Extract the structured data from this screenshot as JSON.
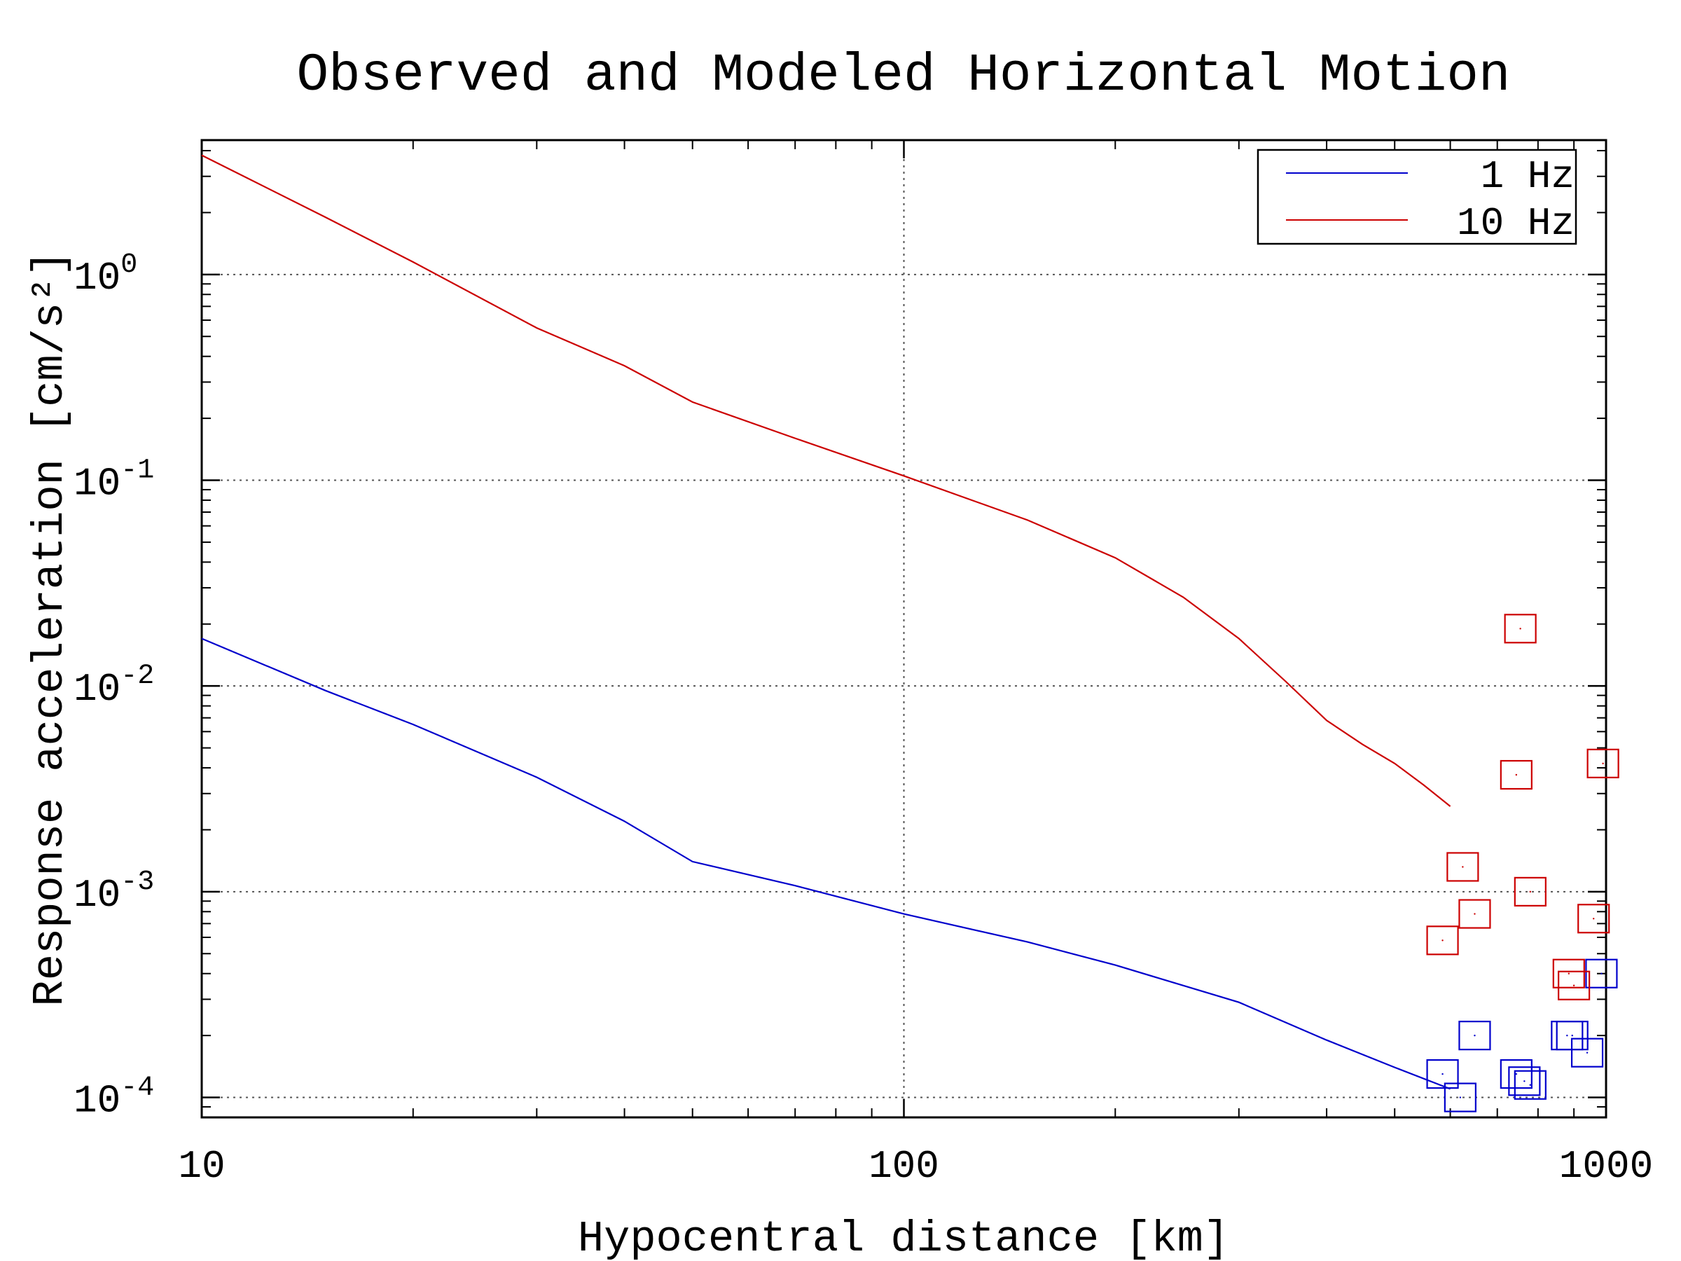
{
  "chart_data": {
    "type": "line",
    "title": "Observed and Modeled Horizontal Motion",
    "xlabel": "Hypocentral distance [km]",
    "ylabel": "Response acceleration [cm/s²]",
    "xscale": "log",
    "yscale": "log",
    "xlim": [
      10,
      1000
    ],
    "ylim": [
      8e-05,
      4.5
    ],
    "x_ticks": [
      {
        "value": 10,
        "label": "10"
      },
      {
        "value": 100,
        "label": "100"
      },
      {
        "value": 1000,
        "label": "1000"
      }
    ],
    "y_ticks": [
      {
        "value": 0.0001,
        "base": "10",
        "exp": "-4"
      },
      {
        "value": 0.001,
        "base": "10",
        "exp": "-3"
      },
      {
        "value": 0.01,
        "base": "10",
        "exp": "-2"
      },
      {
        "value": 0.1,
        "base": "10",
        "exp": "-1"
      },
      {
        "value": 1,
        "base": "10",
        "exp": "0"
      }
    ],
    "grid": true,
    "legend_position": "top-right",
    "series": [
      {
        "name": "1 Hz",
        "kind": "model-line",
        "color": "#0000cc",
        "x": [
          10,
          15,
          20,
          30,
          40,
          50,
          70,
          100,
          150,
          200,
          300,
          400,
          500,
          600
        ],
        "y": [
          0.017,
          0.0095,
          0.0065,
          0.0036,
          0.0022,
          0.0014,
          0.00107,
          0.00078,
          0.00057,
          0.00044,
          0.00029,
          0.00019,
          0.00014,
          0.00011
        ]
      },
      {
        "name": "10 Hz",
        "kind": "model-line",
        "color": "#cc0000",
        "x": [
          10,
          15,
          20,
          30,
          40,
          50,
          70,
          100,
          150,
          200,
          250,
          300,
          350,
          400,
          450,
          500,
          550,
          600
        ],
        "y": [
          3.8,
          1.9,
          1.15,
          0.55,
          0.36,
          0.24,
          0.16,
          0.105,
          0.064,
          0.042,
          0.027,
          0.017,
          0.0105,
          0.0068,
          0.0052,
          0.0042,
          0.0033,
          0.0026
        ]
      },
      {
        "name": "1 Hz observed",
        "kind": "observed-markers",
        "color": "#0000cc",
        "x": [
          585,
          620,
          650,
          745,
          765,
          780,
          880,
          895,
          940,
          985
        ],
        "y": [
          0.00013,
          0.0001,
          0.0002,
          0.00013,
          0.00012,
          0.000115,
          0.0002,
          0.0002,
          0.000165,
          0.0004
        ]
      },
      {
        "name": "10 Hz observed",
        "kind": "observed-markers",
        "color": "#cc0000",
        "x": [
          585,
          625,
          650,
          745,
          755,
          780,
          885,
          900,
          960,
          990
        ],
        "y": [
          0.00058,
          0.00132,
          0.00078,
          0.0037,
          0.019,
          0.001,
          0.0004,
          0.00035,
          0.00074,
          0.0042
        ]
      }
    ]
  }
}
